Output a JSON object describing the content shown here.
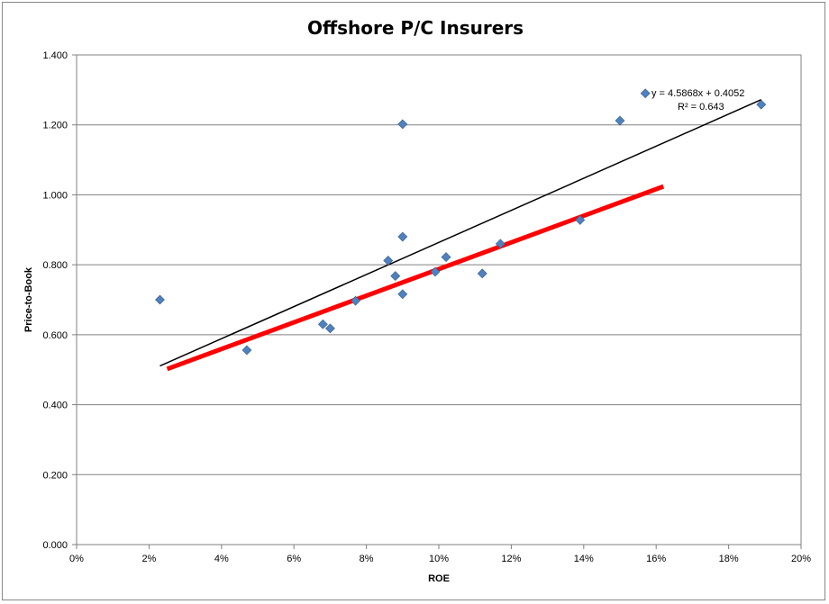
{
  "chart_data": {
    "type": "scatter",
    "title": "Offshore P/C Insurers",
    "xlabel": "ROE",
    "ylabel": "Price-to-Book",
    "xlim": [
      0,
      0.2
    ],
    "ylim": [
      0,
      1.4
    ],
    "x_ticks": [
      0,
      0.02,
      0.04,
      0.06,
      0.08,
      0.1,
      0.12,
      0.14,
      0.16,
      0.18,
      0.2
    ],
    "x_tick_labels": [
      "0%",
      "2%",
      "4%",
      "6%",
      "8%",
      "10%",
      "12%",
      "14%",
      "16%",
      "18%",
      "20%"
    ],
    "y_ticks": [
      0,
      0.2,
      0.4,
      0.6,
      0.8,
      1.0,
      1.2,
      1.4
    ],
    "y_tick_labels": [
      "0.000",
      "0.200",
      "0.400",
      "0.600",
      "0.800",
      "1.000",
      "1.200",
      "1.400"
    ],
    "grid": "horizontal",
    "series": [
      {
        "color": "#4F81BD",
        "points": [
          [
            0.023,
            0.7
          ],
          [
            0.047,
            0.556
          ],
          [
            0.068,
            0.63
          ],
          [
            0.07,
            0.618
          ],
          [
            0.077,
            0.697
          ],
          [
            0.086,
            0.812
          ],
          [
            0.088,
            0.768
          ],
          [
            0.09,
            0.716
          ],
          [
            0.09,
            1.202
          ],
          [
            0.09,
            0.88
          ],
          [
            0.099,
            0.78
          ],
          [
            0.102,
            0.822
          ],
          [
            0.112,
            0.775
          ],
          [
            0.117,
            0.86
          ],
          [
            0.139,
            0.928
          ],
          [
            0.15,
            1.212
          ],
          [
            0.157,
            1.29
          ],
          [
            0.189,
            1.258
          ]
        ]
      }
    ],
    "trendline": {
      "color": "#000000",
      "slope": 4.5868,
      "intercept": 0.4052,
      "x_range": [
        0.023,
        0.189
      ],
      "equation_text": "y = 4.5868x + 0.4052",
      "r2_text": "R² = 0.643"
    },
    "red_line": {
      "color": "#FF0000",
      "x": [
        0.025,
        0.162
      ],
      "y": [
        0.502,
        1.024
      ]
    }
  }
}
